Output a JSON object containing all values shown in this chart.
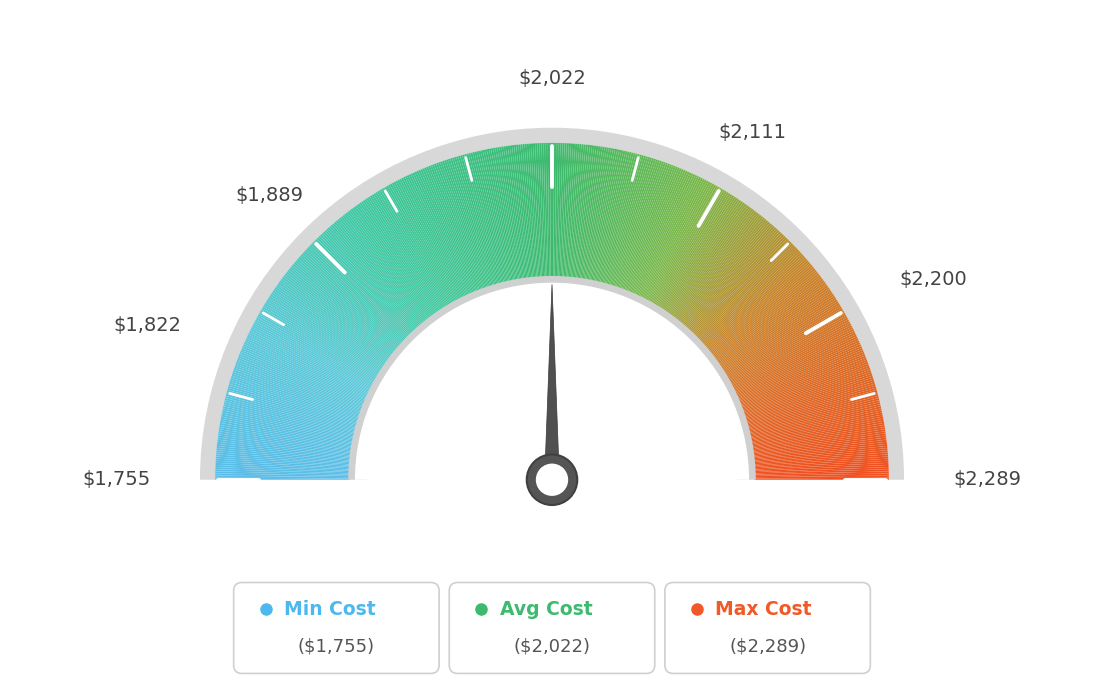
{
  "min_val": 1755,
  "avg_val": 2022,
  "max_val": 2289,
  "tick_labels": [
    "$1,755",
    "$1,822",
    "$1,889",
    "$2,022",
    "$2,111",
    "$2,200",
    "$2,289"
  ],
  "tick_values": [
    1755,
    1822,
    1889,
    2022,
    2111,
    2200,
    2289
  ],
  "legend": [
    {
      "label": "Min Cost",
      "value": "($1,755)",
      "color": "#4db8f0"
    },
    {
      "label": "Avg Cost",
      "value": "($2,022)",
      "color": "#3dba6e"
    },
    {
      "label": "Max Cost",
      "value": "($2,289)",
      "color": "#f05a28"
    }
  ],
  "background_color": "#ffffff",
  "outer_r": 1.0,
  "inner_r": 0.6,
  "color_stops": [
    [
      0.0,
      "#5bbde8"
    ],
    [
      0.15,
      "#5bc8d8"
    ],
    [
      0.3,
      "#3fc8a0"
    ],
    [
      0.5,
      "#3dba6e"
    ],
    [
      0.65,
      "#7ab84a"
    ],
    [
      0.78,
      "#c8832a"
    ],
    [
      1.0,
      "#f05020"
    ]
  ],
  "gray_outer_color": "#d8d8d8",
  "gray_inner_color": "#d0d0d0",
  "needle_color": "#505050",
  "pivot_outer_color": "#555555",
  "pivot_inner_color": "#ffffff"
}
